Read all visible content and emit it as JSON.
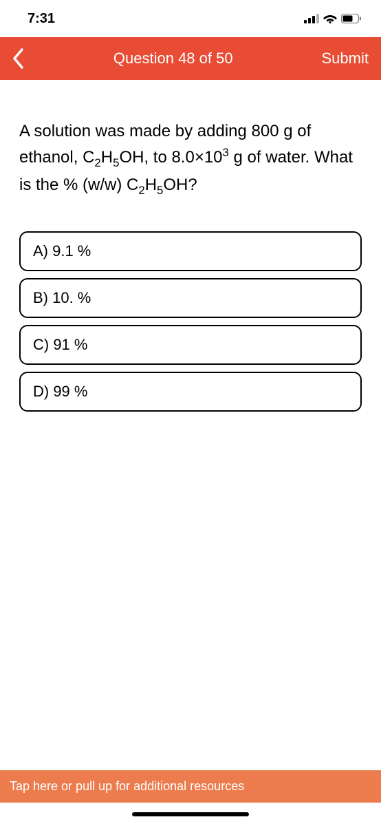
{
  "status": {
    "time": "7:31"
  },
  "header": {
    "title": "Question 48 of 50",
    "submit_label": "Submit"
  },
  "question": {
    "text_html": "A solution was made by adding 800 g of ethanol, C<sub>2</sub>H<sub>5</sub>OH, to 8.0×10<sup>3</sup> g of water. What is the % (w/w) C<sub>2</sub>H<sub>5</sub>OH?"
  },
  "options": [
    {
      "label": "A) 9.1 %"
    },
    {
      "label": "B) 10. %"
    },
    {
      "label": "C) 91 %"
    },
    {
      "label": "D) 99 %"
    }
  ],
  "footer": {
    "text": "Tap here or pull up for additional resources"
  },
  "colors": {
    "header_bg": "#e84c34",
    "footer_bg": "#ec7b4e",
    "option_border": "#000000"
  }
}
